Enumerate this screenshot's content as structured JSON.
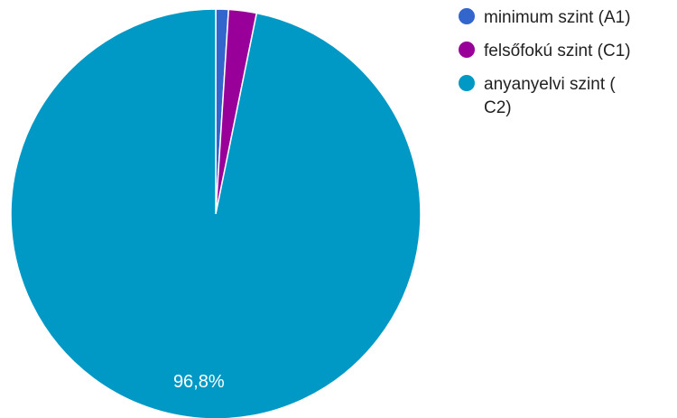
{
  "chart_data": {
    "type": "pie",
    "slices": [
      {
        "label": "minimum szint (A1)",
        "value": 1.0,
        "color": "#3366cc"
      },
      {
        "label": "felsőfokú szint (C1)",
        "value": 2.2,
        "color": "#990099"
      },
      {
        "label": "anyanyelvi szint ( C2)",
        "label_lines": [
          "anyanyelvi szint (",
          "C2)"
        ],
        "value": 96.8,
        "value_label": "96,8%",
        "color": "#0099c6"
      }
    ],
    "legend_position": "top-right"
  }
}
